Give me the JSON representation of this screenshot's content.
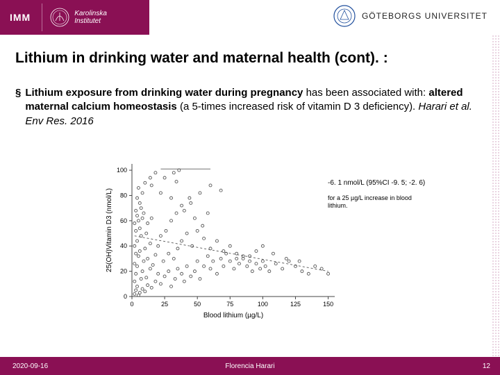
{
  "header": {
    "imm_label": "IMM",
    "ki_name_line1": "Karolinska",
    "ki_name_line2": "Institutet",
    "gu_name": "GÖTEBORGS UNIVERSITET"
  },
  "title": "Lithium in drinking water and maternal health (cont). :",
  "bullet": {
    "mark": "§",
    "bold1": "Lithium exposure from drinking water during pregnancy",
    "plain1": " has been associated with: ",
    "bold2": "altered maternal calcium homeostasis",
    "plain2": " (a 5-times increased risk of vitamin D 3 deficiency). ",
    "citation": "Harari et al. Env Res. 2016"
  },
  "chart": {
    "type": "scatter",
    "xlabel": "Blood lithium (µg/L)",
    "ylabel": "25(OH)Vitamin D3 (nmol/L)",
    "xlim": [
      0,
      155
    ],
    "ylim": [
      0,
      105
    ],
    "xticks": [
      0,
      25,
      50,
      75,
      100,
      125,
      150
    ],
    "yticks": [
      0,
      20,
      40,
      60,
      80,
      100
    ],
    "plot_bg": "#ffffff",
    "axis_color": "#444444",
    "tick_color": "#444444",
    "label_color": "#000000",
    "label_fontsize": 10,
    "tick_fontsize": 9,
    "marker_style": "circle",
    "marker_size": 4,
    "marker_fill": "none",
    "marker_stroke": "#555555",
    "marker_stroke_width": 0.9,
    "trend_line": {
      "x1": 2,
      "y1": 48,
      "x2": 150,
      "y2": 20,
      "color": "#555555",
      "width": 0.9,
      "dash": "3,3"
    },
    "points": [
      [
        2,
        2
      ],
      [
        3,
        5
      ],
      [
        4,
        8
      ],
      [
        2,
        12
      ],
      [
        5,
        1
      ],
      [
        6,
        3
      ],
      [
        8,
        6
      ],
      [
        7,
        14
      ],
      [
        3,
        18
      ],
      [
        4,
        24
      ],
      [
        2,
        26
      ],
      [
        10,
        4
      ],
      [
        12,
        9
      ],
      [
        5,
        32
      ],
      [
        3,
        34
      ],
      [
        8,
        20
      ],
      [
        6,
        36
      ],
      [
        2,
        40
      ],
      [
        11,
        15
      ],
      [
        15,
        7
      ],
      [
        4,
        44
      ],
      [
        9,
        28
      ],
      [
        7,
        48
      ],
      [
        3,
        52
      ],
      [
        14,
        22
      ],
      [
        6,
        54
      ],
      [
        2,
        58
      ],
      [
        18,
        12
      ],
      [
        12,
        30
      ],
      [
        5,
        60
      ],
      [
        10,
        38
      ],
      [
        4,
        64
      ],
      [
        20,
        18
      ],
      [
        8,
        62
      ],
      [
        16,
        25
      ],
      [
        3,
        68
      ],
      [
        22,
        10
      ],
      [
        7,
        70
      ],
      [
        25,
        16
      ],
      [
        14,
        42
      ],
      [
        11,
        50
      ],
      [
        6,
        74
      ],
      [
        28,
        20
      ],
      [
        30,
        8
      ],
      [
        18,
        33
      ],
      [
        4,
        78
      ],
      [
        9,
        66
      ],
      [
        33,
        14
      ],
      [
        24,
        28
      ],
      [
        12,
        58
      ],
      [
        35,
        22
      ],
      [
        8,
        82
      ],
      [
        20,
        40
      ],
      [
        38,
        18
      ],
      [
        15,
        62
      ],
      [
        40,
        12
      ],
      [
        5,
        86
      ],
      [
        28,
        34
      ],
      [
        42,
        24
      ],
      [
        10,
        90
      ],
      [
        32,
        30
      ],
      [
        45,
        16
      ],
      [
        22,
        48
      ],
      [
        48,
        20
      ],
      [
        35,
        38
      ],
      [
        14,
        94
      ],
      [
        50,
        28
      ],
      [
        26,
        52
      ],
      [
        52,
        14
      ],
      [
        18,
        98
      ],
      [
        55,
        24
      ],
      [
        38,
        44
      ],
      [
        58,
        32
      ],
      [
        30,
        60
      ],
      [
        60,
        22
      ],
      [
        42,
        50
      ],
      [
        62,
        28
      ],
      [
        34,
        66
      ],
      [
        65,
        18
      ],
      [
        46,
        40
      ],
      [
        68,
        30
      ],
      [
        50,
        52
      ],
      [
        70,
        24
      ],
      [
        38,
        72
      ],
      [
        72,
        34
      ],
      [
        55,
        46
      ],
      [
        75,
        28
      ],
      [
        60,
        38
      ],
      [
        78,
        22
      ],
      [
        44,
        78
      ],
      [
        80,
        30
      ],
      [
        65,
        44
      ],
      [
        82,
        26
      ],
      [
        70,
        36
      ],
      [
        85,
        32
      ],
      [
        52,
        82
      ],
      [
        88,
        24
      ],
      [
        75,
        40
      ],
      [
        90,
        28
      ],
      [
        80,
        34
      ],
      [
        92,
        20
      ],
      [
        85,
        30
      ],
      [
        95,
        26
      ],
      [
        60,
        88
      ],
      [
        98,
        22
      ],
      [
        90,
        32
      ],
      [
        100,
        28
      ],
      [
        68,
        84
      ],
      [
        102,
        24
      ],
      [
        95,
        36
      ],
      [
        105,
        20
      ],
      [
        110,
        26
      ],
      [
        100,
        40
      ],
      [
        115,
        22
      ],
      [
        120,
        28
      ],
      [
        108,
        34
      ],
      [
        125,
        24
      ],
      [
        130,
        20
      ],
      [
        118,
        30
      ],
      [
        135,
        18
      ],
      [
        140,
        24
      ],
      [
        128,
        28
      ],
      [
        145,
        22
      ],
      [
        150,
        18
      ],
      [
        15,
        88
      ],
      [
        22,
        82
      ],
      [
        25,
        94
      ],
      [
        30,
        78
      ],
      [
        34,
        91
      ],
      [
        40,
        68
      ],
      [
        45,
        74
      ],
      [
        48,
        62
      ],
      [
        54,
        56
      ],
      [
        58,
        66
      ],
      [
        32,
        98
      ],
      [
        36,
        100
      ]
    ]
  },
  "annotations": {
    "line1": "-6. 1 nmol/L (95%CI -9. 5; -2. 6)",
    "line2": "for a 25 µg/L increase in blood lithium."
  },
  "footer": {
    "date": "2020-09-16",
    "author": "Florencia Harari",
    "page": "12"
  },
  "colors": {
    "brand": "#8a1054",
    "text": "#000000",
    "gu_seal_stroke": "#1f4e9c"
  }
}
